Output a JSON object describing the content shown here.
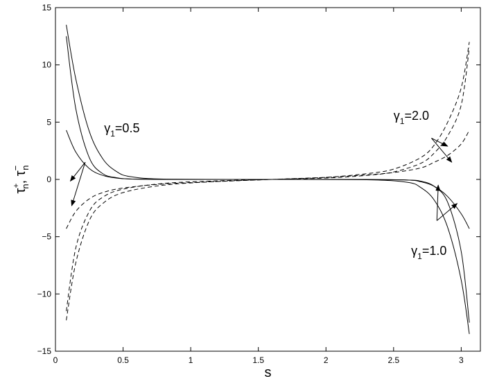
{
  "chart_data": {
    "type": "line",
    "xlabel": "s",
    "ylabel": {
      "base": "τ",
      "sub": "n",
      "sup_plus": "+",
      "sep": ", ",
      "sup_minus": "−"
    },
    "xlim": [
      0,
      3.14159
    ],
    "ylim": [
      -15,
      15
    ],
    "xticks": [
      0,
      0.5,
      1,
      1.5,
      2,
      2.5,
      3
    ],
    "xtick_labels": [
      "0",
      "0.5",
      "1",
      "1.5",
      "2",
      "2.5",
      "3"
    ],
    "yticks": [
      -15,
      -10,
      -5,
      0,
      5,
      10,
      15
    ],
    "ytick_labels": [
      "−15",
      "−10",
      "−5",
      "0",
      "5",
      "10",
      "15"
    ],
    "grid": false,
    "series": [
      {
        "style": "solid",
        "x": [
          0.08,
          0.15,
          0.25,
          0.35,
          0.45,
          0.55,
          0.8,
          1.5,
          2.3,
          2.6,
          2.7,
          2.8,
          2.9,
          3.0,
          3.06
        ],
        "y": [
          4.3,
          2.4,
          0.95,
          0.35,
          0.12,
          0.04,
          0.01,
          0,
          -0.01,
          -0.05,
          -0.2,
          -0.6,
          -1.5,
          -3.0,
          -4.3
        ]
      },
      {
        "style": "solid",
        "x": [
          0.08,
          0.15,
          0.25,
          0.35,
          0.45,
          0.55,
          0.8,
          1.5,
          2.3,
          2.6,
          2.7,
          2.8,
          2.9,
          3.0,
          3.06
        ],
        "y": [
          12.5,
          6.2,
          1.9,
          0.5,
          0.15,
          0.04,
          0.01,
          0,
          -0.01,
          -0.05,
          -0.15,
          -0.6,
          -2.0,
          -6.3,
          -12.5
        ]
      },
      {
        "style": "solid",
        "x": [
          0.08,
          0.15,
          0.25,
          0.35,
          0.45,
          0.55,
          0.8,
          1.5,
          2.3,
          2.6,
          2.7,
          2.8,
          2.9,
          3.0,
          3.06
        ],
        "y": [
          13.5,
          8.8,
          4.2,
          1.8,
          0.7,
          0.25,
          0.03,
          0,
          -0.03,
          -0.25,
          -0.7,
          -1.8,
          -4.2,
          -8.8,
          -13.5
        ]
      },
      {
        "style": "dashed",
        "x": [
          0.08,
          0.15,
          0.25,
          0.35,
          0.5,
          0.8,
          1.2,
          1.6,
          2.0,
          2.3,
          2.5,
          2.7,
          2.8,
          2.9,
          3.0,
          3.06
        ],
        "y": [
          -4.3,
          -2.8,
          -1.7,
          -1.15,
          -0.75,
          -0.4,
          -0.18,
          0,
          0.18,
          0.4,
          0.6,
          1.0,
          1.5,
          2.1,
          3.1,
          4.3
        ]
      },
      {
        "style": "dashed",
        "x": [
          0.08,
          0.15,
          0.25,
          0.35,
          0.5,
          0.8,
          1.2,
          1.6,
          2.0,
          2.3,
          2.5,
          2.7,
          2.8,
          2.9,
          3.0,
          3.06
        ],
        "y": [
          -11.5,
          -6.0,
          -2.8,
          -1.55,
          -0.85,
          -0.35,
          -0.12,
          0,
          0.12,
          0.35,
          0.65,
          1.4,
          2.3,
          3.8,
          6.5,
          11.5
        ]
      },
      {
        "style": "dashed",
        "x": [
          0.08,
          0.15,
          0.25,
          0.35,
          0.5,
          0.8,
          1.2,
          1.6,
          2.0,
          2.3,
          2.5,
          2.7,
          2.8,
          2.9,
          3.0,
          3.06
        ],
        "y": [
          -12.3,
          -7.3,
          -3.6,
          -2.1,
          -1.15,
          -0.5,
          -0.18,
          0,
          0.18,
          0.5,
          0.9,
          1.9,
          3.0,
          5.0,
          8.0,
          12.0
        ]
      }
    ],
    "annotations": [
      {
        "greek": "γ",
        "sub": "1",
        "value": "=0.5",
        "x": 0.36,
        "y": 4.1,
        "arrows": [
          [
            0.22,
            1.5,
            0.11,
            -0.15
          ],
          [
            0.22,
            1.5,
            0.12,
            -2.3
          ]
        ]
      },
      {
        "greek": "γ",
        "sub": "1",
        "value": "=2.0",
        "x": 2.5,
        "y": 5.2,
        "arrows": [
          [
            2.78,
            3.6,
            2.93,
            1.5
          ],
          [
            2.78,
            3.6,
            2.9,
            2.9
          ]
        ]
      },
      {
        "greek": "γ",
        "sub": "1",
        "value": "=1.0",
        "x": 2.63,
        "y": -6.6,
        "arrows": [
          [
            2.82,
            -3.6,
            2.83,
            -0.5
          ],
          [
            2.82,
            -3.6,
            2.97,
            -2.1
          ]
        ]
      }
    ]
  }
}
